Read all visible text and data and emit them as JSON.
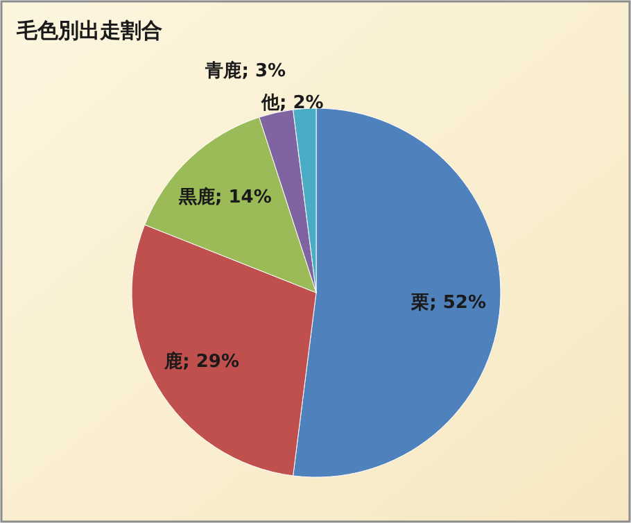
{
  "chart_data": {
    "type": "pie",
    "title": "毛色別出走割合",
    "categories": [
      "栗",
      "鹿",
      "黒鹿",
      "青鹿",
      "他"
    ],
    "values": [
      52,
      29,
      14,
      3,
      2
    ],
    "colors": [
      "#4f81bd",
      "#c0504d",
      "#9bbb59",
      "#8064a2",
      "#4bacc6"
    ],
    "value_labels": [
      "; 52%",
      "; 29%",
      "; 14%",
      "; 3%",
      "; 2%"
    ]
  }
}
